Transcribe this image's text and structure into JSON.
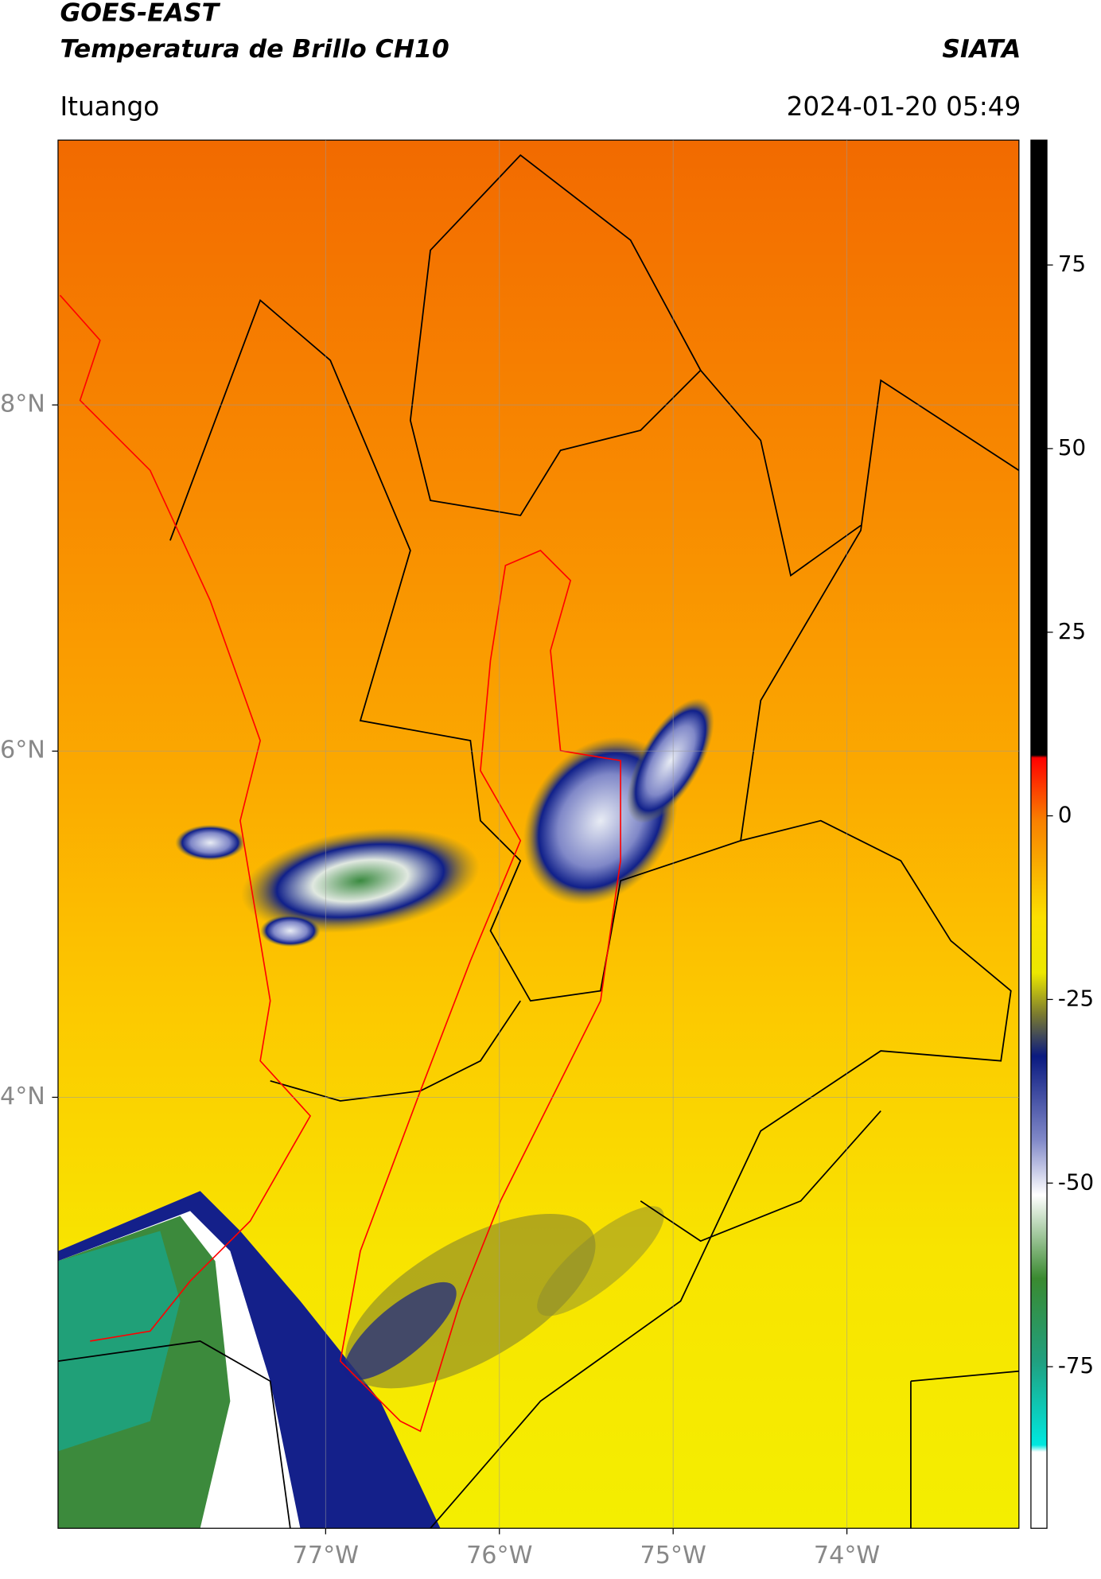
{
  "header": {
    "line1": "GOES-EAST",
    "line2": "Temperatura de Brillo CH10",
    "org": "SIATA",
    "location": "Ituango",
    "datetime": "2024-01-20 05:49"
  },
  "map": {
    "latlim": [
      1.51,
      9.53
    ],
    "lonlim": [
      -78.54,
      -73.01
    ],
    "lat_ticks": [
      {
        "value": 8,
        "label": "8°N"
      },
      {
        "value": 6,
        "label": "6°N"
      },
      {
        "value": 4,
        "label": "4°N"
      }
    ],
    "lon_ticks": [
      {
        "value": -77,
        "label": "77°W"
      },
      {
        "value": -76,
        "label": "76°W"
      },
      {
        "value": -75,
        "label": "75°W"
      },
      {
        "value": -74,
        "label": "74°W"
      }
    ]
  },
  "colorbar": {
    "lim": [
      -97,
      92
    ],
    "ticks": [
      75,
      50,
      25,
      0,
      -25,
      -50,
      -75
    ]
  }
}
